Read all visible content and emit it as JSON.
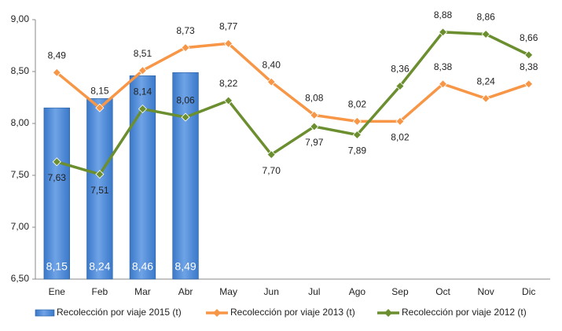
{
  "chart_data": {
    "type": "combo",
    "categories": [
      "Ene",
      "Feb",
      "Mar",
      "Abr",
      "May",
      "Jun",
      "Jul",
      "Ago",
      "Sep",
      "Oct",
      "Nov",
      "Dic"
    ],
    "ylim": [
      6.5,
      9
    ],
    "yticks": [
      {
        "value": 6.5,
        "label": "6,50"
      },
      {
        "value": 7,
        "label": "7,00"
      },
      {
        "value": 7.5,
        "label": "7,50"
      },
      {
        "value": 8,
        "label": "8,00"
      },
      {
        "value": 8.5,
        "label": "8,50"
      },
      {
        "value": 9,
        "label": "9,00"
      }
    ],
    "legend": "bottom",
    "series": [
      {
        "name": "Recolección por viaje 2015 (t)",
        "type": "bar",
        "color": "#3a78c9",
        "values": [
          8.15,
          8.24,
          8.46,
          8.49,
          null,
          null,
          null,
          null,
          null,
          null,
          null,
          null
        ],
        "value_labels": [
          "8,15",
          "8,24",
          "8,46",
          "8,49",
          null,
          null,
          null,
          null,
          null,
          null,
          null,
          null
        ]
      },
      {
        "name": "Recolección por viaje 2013 (t)",
        "type": "line",
        "color": "#f79646",
        "values": [
          8.49,
          8.15,
          8.51,
          8.73,
          8.77,
          8.4,
          8.08,
          8.02,
          8.02,
          8.38,
          8.24,
          8.38
        ],
        "value_labels": [
          "8,49",
          "8,15",
          "8,51",
          "8,73",
          "8,77",
          "8,40",
          "8,08",
          "8,02",
          "8,02",
          "8,38",
          "8,24",
          "8,38"
        ]
      },
      {
        "name": "Recolección por viaje 2012 (t)",
        "type": "line",
        "color": "#6b8e2f",
        "values": [
          7.63,
          7.51,
          8.14,
          8.06,
          8.22,
          7.7,
          7.97,
          7.89,
          8.36,
          8.88,
          8.86,
          8.66
        ],
        "value_labels": [
          "7,63",
          "7,51",
          "8,14",
          "8,06",
          "8,22",
          "7,70",
          "7,97",
          "7,89",
          "8,36",
          "8,88",
          "8,86",
          "8,66"
        ]
      }
    ]
  }
}
